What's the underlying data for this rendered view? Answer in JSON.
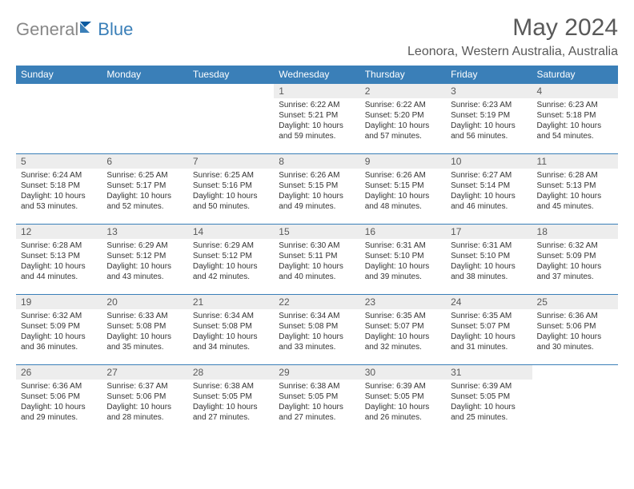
{
  "logo": {
    "text1": "General",
    "text2": "Blue"
  },
  "title": "May 2024",
  "subtitle": "Leonora, Western Australia, Australia",
  "colors": {
    "header_bg": "#3a7fb8",
    "header_fg": "#ffffff",
    "daynum_bg": "#ededed",
    "text": "#595959",
    "body_text": "#333333",
    "page_bg": "#ffffff"
  },
  "dayNames": [
    "Sunday",
    "Monday",
    "Tuesday",
    "Wednesday",
    "Thursday",
    "Friday",
    "Saturday"
  ],
  "weeks": [
    [
      {
        "n": "",
        "sr": "",
        "ss": "",
        "dl": ""
      },
      {
        "n": "",
        "sr": "",
        "ss": "",
        "dl": ""
      },
      {
        "n": "",
        "sr": "",
        "ss": "",
        "dl": ""
      },
      {
        "n": "1",
        "sr": "Sunrise: 6:22 AM",
        "ss": "Sunset: 5:21 PM",
        "dl": "Daylight: 10 hours and 59 minutes."
      },
      {
        "n": "2",
        "sr": "Sunrise: 6:22 AM",
        "ss": "Sunset: 5:20 PM",
        "dl": "Daylight: 10 hours and 57 minutes."
      },
      {
        "n": "3",
        "sr": "Sunrise: 6:23 AM",
        "ss": "Sunset: 5:19 PM",
        "dl": "Daylight: 10 hours and 56 minutes."
      },
      {
        "n": "4",
        "sr": "Sunrise: 6:23 AM",
        "ss": "Sunset: 5:18 PM",
        "dl": "Daylight: 10 hours and 54 minutes."
      }
    ],
    [
      {
        "n": "5",
        "sr": "Sunrise: 6:24 AM",
        "ss": "Sunset: 5:18 PM",
        "dl": "Daylight: 10 hours and 53 minutes."
      },
      {
        "n": "6",
        "sr": "Sunrise: 6:25 AM",
        "ss": "Sunset: 5:17 PM",
        "dl": "Daylight: 10 hours and 52 minutes."
      },
      {
        "n": "7",
        "sr": "Sunrise: 6:25 AM",
        "ss": "Sunset: 5:16 PM",
        "dl": "Daylight: 10 hours and 50 minutes."
      },
      {
        "n": "8",
        "sr": "Sunrise: 6:26 AM",
        "ss": "Sunset: 5:15 PM",
        "dl": "Daylight: 10 hours and 49 minutes."
      },
      {
        "n": "9",
        "sr": "Sunrise: 6:26 AM",
        "ss": "Sunset: 5:15 PM",
        "dl": "Daylight: 10 hours and 48 minutes."
      },
      {
        "n": "10",
        "sr": "Sunrise: 6:27 AM",
        "ss": "Sunset: 5:14 PM",
        "dl": "Daylight: 10 hours and 46 minutes."
      },
      {
        "n": "11",
        "sr": "Sunrise: 6:28 AM",
        "ss": "Sunset: 5:13 PM",
        "dl": "Daylight: 10 hours and 45 minutes."
      }
    ],
    [
      {
        "n": "12",
        "sr": "Sunrise: 6:28 AM",
        "ss": "Sunset: 5:13 PM",
        "dl": "Daylight: 10 hours and 44 minutes."
      },
      {
        "n": "13",
        "sr": "Sunrise: 6:29 AM",
        "ss": "Sunset: 5:12 PM",
        "dl": "Daylight: 10 hours and 43 minutes."
      },
      {
        "n": "14",
        "sr": "Sunrise: 6:29 AM",
        "ss": "Sunset: 5:12 PM",
        "dl": "Daylight: 10 hours and 42 minutes."
      },
      {
        "n": "15",
        "sr": "Sunrise: 6:30 AM",
        "ss": "Sunset: 5:11 PM",
        "dl": "Daylight: 10 hours and 40 minutes."
      },
      {
        "n": "16",
        "sr": "Sunrise: 6:31 AM",
        "ss": "Sunset: 5:10 PM",
        "dl": "Daylight: 10 hours and 39 minutes."
      },
      {
        "n": "17",
        "sr": "Sunrise: 6:31 AM",
        "ss": "Sunset: 5:10 PM",
        "dl": "Daylight: 10 hours and 38 minutes."
      },
      {
        "n": "18",
        "sr": "Sunrise: 6:32 AM",
        "ss": "Sunset: 5:09 PM",
        "dl": "Daylight: 10 hours and 37 minutes."
      }
    ],
    [
      {
        "n": "19",
        "sr": "Sunrise: 6:32 AM",
        "ss": "Sunset: 5:09 PM",
        "dl": "Daylight: 10 hours and 36 minutes."
      },
      {
        "n": "20",
        "sr": "Sunrise: 6:33 AM",
        "ss": "Sunset: 5:08 PM",
        "dl": "Daylight: 10 hours and 35 minutes."
      },
      {
        "n": "21",
        "sr": "Sunrise: 6:34 AM",
        "ss": "Sunset: 5:08 PM",
        "dl": "Daylight: 10 hours and 34 minutes."
      },
      {
        "n": "22",
        "sr": "Sunrise: 6:34 AM",
        "ss": "Sunset: 5:08 PM",
        "dl": "Daylight: 10 hours and 33 minutes."
      },
      {
        "n": "23",
        "sr": "Sunrise: 6:35 AM",
        "ss": "Sunset: 5:07 PM",
        "dl": "Daylight: 10 hours and 32 minutes."
      },
      {
        "n": "24",
        "sr": "Sunrise: 6:35 AM",
        "ss": "Sunset: 5:07 PM",
        "dl": "Daylight: 10 hours and 31 minutes."
      },
      {
        "n": "25",
        "sr": "Sunrise: 6:36 AM",
        "ss": "Sunset: 5:06 PM",
        "dl": "Daylight: 10 hours and 30 minutes."
      }
    ],
    [
      {
        "n": "26",
        "sr": "Sunrise: 6:36 AM",
        "ss": "Sunset: 5:06 PM",
        "dl": "Daylight: 10 hours and 29 minutes."
      },
      {
        "n": "27",
        "sr": "Sunrise: 6:37 AM",
        "ss": "Sunset: 5:06 PM",
        "dl": "Daylight: 10 hours and 28 minutes."
      },
      {
        "n": "28",
        "sr": "Sunrise: 6:38 AM",
        "ss": "Sunset: 5:05 PM",
        "dl": "Daylight: 10 hours and 27 minutes."
      },
      {
        "n": "29",
        "sr": "Sunrise: 6:38 AM",
        "ss": "Sunset: 5:05 PM",
        "dl": "Daylight: 10 hours and 27 minutes."
      },
      {
        "n": "30",
        "sr": "Sunrise: 6:39 AM",
        "ss": "Sunset: 5:05 PM",
        "dl": "Daylight: 10 hours and 26 minutes."
      },
      {
        "n": "31",
        "sr": "Sunrise: 6:39 AM",
        "ss": "Sunset: 5:05 PM",
        "dl": "Daylight: 10 hours and 25 minutes."
      },
      {
        "n": "",
        "sr": "",
        "ss": "",
        "dl": ""
      }
    ]
  ]
}
